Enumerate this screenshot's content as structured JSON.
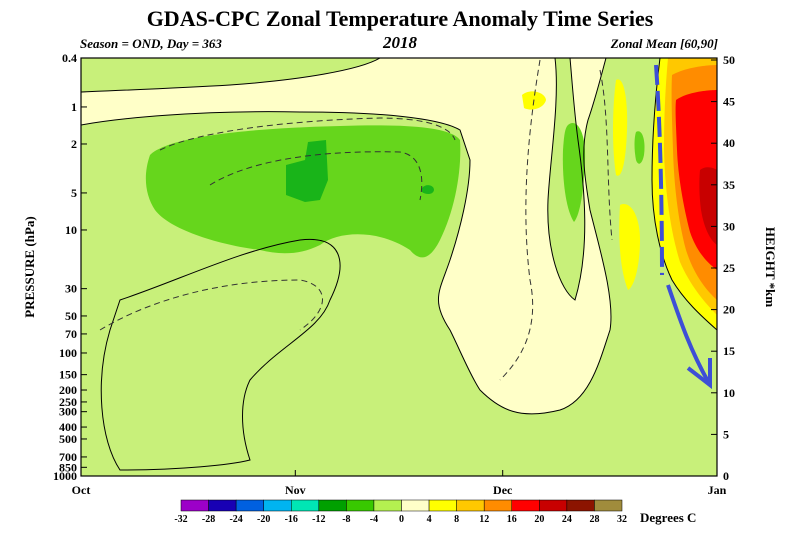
{
  "chart_data": {
    "type": "heatmap",
    "title": "GDAS-CPC Zonal Temperature Anomaly Time Series",
    "subtitle_left": "Season = OND, Day = 363",
    "subtitle_center": "2018",
    "subtitle_right": "Zonal Mean [60,90]",
    "ylabel_left": "PRESSURE (hPa)",
    "ylabel_right": "HEIGHT *km",
    "x_ticks": [
      "Oct",
      "Nov",
      "Dec",
      "Jan"
    ],
    "pressure_ticks": [
      "0.4",
      "1",
      "2",
      "5",
      "10",
      "30",
      "50",
      "70",
      "100",
      "150",
      "200",
      "250",
      "300",
      "400",
      "500",
      "700",
      "850",
      "1000"
    ],
    "height_ticks": [
      "0",
      "5",
      "10",
      "15",
      "20",
      "25",
      "30",
      "35",
      "40",
      "45",
      "50"
    ],
    "colorbar": {
      "label": "Degrees C",
      "ticks": [
        "-32",
        "-28",
        "-24",
        "-20",
        "-16",
        "-12",
        "-8",
        "-4",
        "0",
        "4",
        "8",
        "12",
        "16",
        "20",
        "24",
        "28",
        "32"
      ],
      "colors": [
        "#9c00c8",
        "#1800b4",
        "#0060e0",
        "#00b4f0",
        "#00e6b4",
        "#00a000",
        "#38c800",
        "#b4f050",
        "#ffffc8",
        "#ffff00",
        "#ffc800",
        "#ff8c00",
        "#ff0000",
        "#c80000",
        "#8c1400",
        "#a08c3c"
      ]
    },
    "grid": false
  }
}
